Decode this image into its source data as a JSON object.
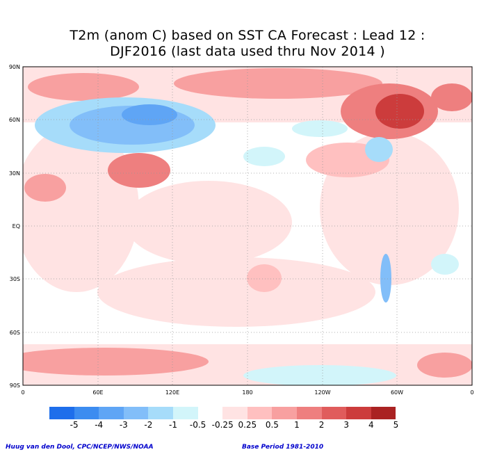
{
  "title_line1": "T2m (anom C) based on SST CA Forecast : Lead 12 :",
  "title_line2": "DJF2016 (last data used thru Nov 2014 )",
  "lat_labels": [
    "90N",
    "60N",
    "30N",
    "EQ",
    "30S",
    "60S",
    "90S"
  ],
  "lon_labels": [
    "0",
    "60E",
    "120E",
    "180",
    "120W",
    "60W",
    "0"
  ],
  "colorbar": {
    "colors": [
      "#1e6eeb",
      "#3c8cf0",
      "#5fa5f5",
      "#82bef9",
      "#a6dcfa",
      "#d2f5fa",
      "#ffffff",
      "#ffe3e3",
      "#ffc0c0",
      "#f8a0a0",
      "#ee7f7f",
      "#e05c5c",
      "#cc3c3c",
      "#aa2222"
    ],
    "labels": [
      "-5",
      "-4",
      "-3",
      "-2",
      "-1",
      "-0.5",
      "-0.25",
      "0.25",
      "0.5",
      "1",
      "2",
      "3",
      "4",
      "5"
    ]
  },
  "credit": "Huug van den Dool, CPC/NCEP/NWS/NOAA",
  "base_period": "Base Period 1981-2010"
}
